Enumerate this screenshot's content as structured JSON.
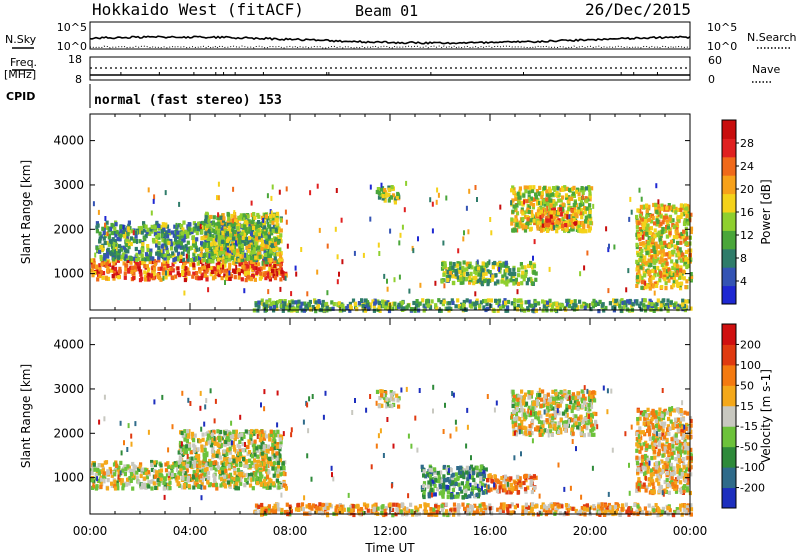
{
  "header": {
    "station": "Hokkaido West (fitACF)",
    "beam": "Beam 01",
    "date": "26/Dec/2015"
  },
  "top_panels": {
    "nsky_label": "N.Sky",
    "nsearch_label": "N.Search",
    "nsky_ticks": [
      "10^5",
      "10^0"
    ],
    "nsearch_ticks": [
      "10^5",
      "10^0"
    ],
    "freq_label": "Freq.",
    "freq_unit": "[MHz]",
    "freq_ticks": [
      "18",
      "8"
    ],
    "nave_label": "Nave",
    "nave_ticks": [
      "60",
      "0"
    ],
    "cpid_label": "CPID",
    "cpid_value": "normal (fast stereo) 153"
  },
  "x_axis": {
    "title": "Time UT",
    "ticks": [
      "00:00",
      "04:00",
      "08:00",
      "12:00",
      "16:00",
      "20:00",
      "00:00"
    ]
  },
  "chart_data": [
    {
      "type": "heatmap",
      "panel": "power",
      "ylabel": "Slant Range [km]",
      "yticks": [
        1000,
        2000,
        3000,
        4000
      ],
      "ylim": [
        180,
        4600
      ],
      "xlim_hours": [
        0,
        24
      ],
      "colorbar": {
        "label": "Power [dB]",
        "ticks": [
          "28",
          "24",
          "20",
          "16",
          "12",
          "8",
          "4"
        ],
        "colors": [
          "#1e28d2",
          "#3454b4",
          "#2f7c6a",
          "#4aa63a",
          "#8fcf2f",
          "#f4d21a",
          "#f7a11a",
          "#f0691a",
          "#e02020",
          "#c80d0d"
        ]
      },
      "regions": [
        {
          "name": "morning-band",
          "t0": 0.0,
          "t1": 7.8,
          "r0": 900,
          "r1": 1350,
          "level": 0.75
        },
        {
          "name": "morning-upper",
          "t0": 0.2,
          "t1": 7.4,
          "r0": 1350,
          "r1": 2200,
          "level": 0.32
        },
        {
          "name": "rise-band",
          "t0": 4.5,
          "t1": 7.6,
          "r0": 1300,
          "r1": 2400,
          "level": 0.45
        },
        {
          "name": "near-range",
          "t0": 6.5,
          "t1": 24.0,
          "r0": 200,
          "r1": 450,
          "level": 0.35
        },
        {
          "name": "blob-11h",
          "t0": 11.4,
          "t1": 12.3,
          "r0": 2650,
          "r1": 3000,
          "level": 0.45
        },
        {
          "name": "mid-band",
          "t0": 14.0,
          "t1": 17.8,
          "r0": 800,
          "r1": 1300,
          "level": 0.4
        },
        {
          "name": "evening-echo",
          "t0": 16.8,
          "t1": 20.0,
          "r0": 2000,
          "r1": 3000,
          "level": 0.5
        },
        {
          "name": "evening-core",
          "t0": 17.8,
          "t1": 19.4,
          "r0": 2100,
          "r1": 2500,
          "level": 0.72
        },
        {
          "name": "late-echo",
          "t0": 21.8,
          "t1": 24.0,
          "r0": 700,
          "r1": 2600,
          "level": 0.55
        }
      ]
    },
    {
      "type": "heatmap",
      "panel": "velocity",
      "ylabel": "Slant Range [km]",
      "yticks": [
        1000,
        2000,
        3000,
        4000
      ],
      "ylim": [
        180,
        4600
      ],
      "xlim_hours": [
        0,
        24
      ],
      "colorbar": {
        "label": "Velocity [m s-1]",
        "ticks": [
          "200",
          "100",
          "50",
          "15",
          "-15",
          "-50",
          "-100",
          "-200"
        ],
        "colors": [
          "#1d2fbe",
          "#2f6b8a",
          "#2e8a3a",
          "#6cc23a",
          "#c8c8c0",
          "#f4a81a",
          "#f47a10",
          "#e03a10",
          "#d01010"
        ]
      },
      "regions": [
        {
          "name": "morning-band",
          "t0": 0.0,
          "t1": 7.8,
          "r0": 800,
          "r1": 1400,
          "level": 0.5
        },
        {
          "name": "morning-upper",
          "t0": 3.5,
          "t1": 7.6,
          "r0": 1300,
          "r1": 2100,
          "level": 0.48
        },
        {
          "name": "near-range",
          "t0": 6.5,
          "t1": 24.0,
          "r0": 200,
          "r1": 450,
          "level": 0.62
        },
        {
          "name": "blob-11h",
          "t0": 11.4,
          "t1": 12.3,
          "r0": 2650,
          "r1": 3000,
          "level": 0.5
        },
        {
          "name": "orange-band",
          "t0": 13.2,
          "t1": 15.8,
          "r0": 600,
          "r1": 1300,
          "level": 0.3
        },
        {
          "name": "green-band",
          "t0": 15.8,
          "t1": 17.8,
          "r0": 700,
          "r1": 1100,
          "level": 0.68
        },
        {
          "name": "evening-echo",
          "t0": 16.8,
          "t1": 20.2,
          "r0": 2000,
          "r1": 3000,
          "level": 0.52
        },
        {
          "name": "late-echo",
          "t0": 21.8,
          "t1": 24.0,
          "r0": 700,
          "r1": 2600,
          "level": 0.58
        }
      ]
    }
  ]
}
